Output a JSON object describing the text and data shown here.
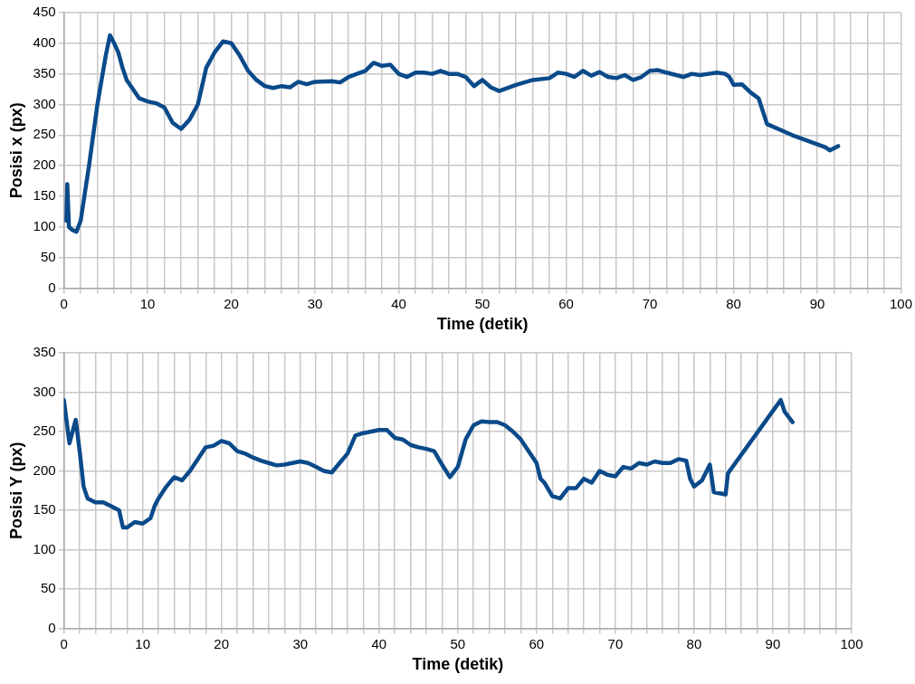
{
  "chart_data": [
    {
      "type": "line",
      "xlabel": "Time (detik)",
      "ylabel": "Posisi x (px)",
      "xlim": [
        0,
        100
      ],
      "ylim": [
        0,
        450
      ],
      "xticks": [
        0,
        {
          "value": 2,
          "label": null
        },
        {
          "value": 4,
          "label": null
        },
        {
          "value": 6,
          "label": null
        },
        {
          "value": 8,
          "label": null
        },
        10,
        {
          "value": 12,
          "label": null
        },
        {
          "value": 14,
          "label": null
        },
        {
          "value": 16,
          "label": null
        },
        {
          "value": 18,
          "label": null
        },
        20,
        {
          "value": 22,
          "label": null
        },
        {
          "value": 24,
          "label": null
        },
        {
          "value": 26,
          "label": null
        },
        {
          "value": 28,
          "label": null
        },
        30,
        {
          "value": 32,
          "label": null
        },
        {
          "value": 34,
          "label": null
        },
        {
          "value": 36,
          "label": null
        },
        {
          "value": 38,
          "label": null
        },
        40,
        {
          "value": 42,
          "label": null
        },
        {
          "value": 44,
          "label": null
        },
        {
          "value": 46,
          "label": null
        },
        {
          "value": 48,
          "label": null
        },
        50,
        {
          "value": 52,
          "label": null
        },
        {
          "value": 54,
          "label": null
        },
        {
          "value": 56,
          "label": null
        },
        {
          "value": 58,
          "label": null
        },
        60,
        {
          "value": 62,
          "label": null
        },
        {
          "value": 64,
          "label": null
        },
        {
          "value": 66,
          "label": null
        },
        {
          "value": 68,
          "label": null
        },
        70,
        {
          "value": 72,
          "label": null
        },
        {
          "value": 74,
          "label": null
        },
        {
          "value": 76,
          "label": null
        },
        {
          "value": 78,
          "label": null
        },
        80,
        {
          "value": 82,
          "label": null
        },
        {
          "value": 84,
          "label": null
        },
        {
          "value": 86,
          "label": null
        },
        {
          "value": 88,
          "label": null
        },
        90,
        {
          "value": 92,
          "label": null
        },
        {
          "value": 94,
          "label": null
        },
        {
          "value": 96,
          "label": null
        },
        {
          "value": 98,
          "label": null
        },
        100
      ],
      "yticks": [
        0,
        50,
        100,
        150,
        200,
        250,
        300,
        350,
        400,
        450
      ],
      "grid": true,
      "legend": false,
      "marker": "none",
      "line_style": "solid",
      "series": [
        {
          "color": "#0a4a8a",
          "x": [
            0.3,
            0.4,
            0.6,
            1,
            1.5,
            2,
            3,
            4,
            5,
            5.5,
            6,
            6.5,
            7,
            7.5,
            8.5,
            9,
            10,
            11,
            12,
            13,
            14,
            15,
            16,
            16.5,
            17,
            18,
            19,
            20,
            21,
            22,
            23,
            24,
            25,
            26,
            27,
            28,
            29,
            30,
            32,
            33,
            34,
            35,
            36,
            37,
            38,
            39,
            40,
            41,
            42,
            43,
            44,
            45,
            46,
            47,
            48,
            49,
            50,
            51,
            52,
            54,
            56,
            58,
            59,
            60,
            61,
            62,
            63,
            64,
            65,
            66,
            67,
            68,
            69,
            70,
            71,
            72,
            74,
            75,
            76,
            77,
            78,
            79,
            79.5,
            80,
            81,
            82,
            83,
            84,
            87,
            91,
            91.5,
            92.5
          ],
          "values": [
            110,
            170,
            100,
            95,
            92,
            110,
            200,
            300,
            380,
            413,
            400,
            385,
            360,
            340,
            320,
            310,
            305,
            302,
            295,
            270,
            260,
            275,
            300,
            330,
            360,
            385,
            403,
            400,
            380,
            355,
            340,
            330,
            327,
            330,
            328,
            337,
            333,
            337,
            338,
            336,
            345,
            350,
            355,
            368,
            363,
            365,
            350,
            345,
            352,
            352,
            350,
            355,
            350,
            350,
            345,
            330,
            340,
            328,
            322,
            332,
            340,
            343,
            352,
            350,
            345,
            355,
            347,
            353,
            345,
            343,
            348,
            340,
            345,
            355,
            356,
            352,
            345,
            350,
            348,
            350,
            352,
            350,
            345,
            332,
            333,
            320,
            310,
            268,
            250,
            230,
            225,
            232
          ]
        }
      ]
    },
    {
      "type": "line",
      "xlabel": "Time (detik)",
      "ylabel": "Posisi Y (px)",
      "xlim": [
        0,
        100
      ],
      "ylim": [
        0,
        350
      ],
      "xticks": [
        0,
        {
          "value": 2,
          "label": null
        },
        {
          "value": 4,
          "label": null
        },
        {
          "value": 6,
          "label": null
        },
        {
          "value": 8,
          "label": null
        },
        10,
        {
          "value": 12,
          "label": null
        },
        {
          "value": 14,
          "label": null
        },
        {
          "value": 16,
          "label": null
        },
        {
          "value": 18,
          "label": null
        },
        20,
        {
          "value": 22,
          "label": null
        },
        {
          "value": 24,
          "label": null
        },
        {
          "value": 26,
          "label": null
        },
        {
          "value": 28,
          "label": null
        },
        30,
        {
          "value": 32,
          "label": null
        },
        {
          "value": 34,
          "label": null
        },
        {
          "value": 36,
          "label": null
        },
        {
          "value": 38,
          "label": null
        },
        40,
        {
          "value": 42,
          "label": null
        },
        {
          "value": 44,
          "label": null
        },
        {
          "value": 46,
          "label": null
        },
        {
          "value": 48,
          "label": null
        },
        50,
        {
          "value": 52,
          "label": null
        },
        {
          "value": 54,
          "label": null
        },
        {
          "value": 56,
          "label": null
        },
        {
          "value": 58,
          "label": null
        },
        60,
        {
          "value": 62,
          "label": null
        },
        {
          "value": 64,
          "label": null
        },
        {
          "value": 66,
          "label": null
        },
        {
          "value": 68,
          "label": null
        },
        70,
        {
          "value": 72,
          "label": null
        },
        {
          "value": 74,
          "label": null
        },
        {
          "value": 76,
          "label": null
        },
        {
          "value": 78,
          "label": null
        },
        80,
        {
          "value": 82,
          "label": null
        },
        {
          "value": 84,
          "label": null
        },
        {
          "value": 86,
          "label": null
        },
        {
          "value": 88,
          "label": null
        },
        90,
        {
          "value": 92,
          "label": null
        },
        {
          "value": 94,
          "label": null
        },
        {
          "value": 96,
          "label": null
        },
        {
          "value": 98,
          "label": null
        },
        100
      ],
      "yticks": [
        0,
        50,
        100,
        150,
        200,
        250,
        300,
        350
      ],
      "grid": true,
      "legend": false,
      "marker": "none",
      "line_style": "solid",
      "series": [
        {
          "color": "#0a4a8a",
          "x": [
            0,
            0.7,
            1.5,
            2,
            2.5,
            3,
            4,
            5,
            6,
            7,
            7.5,
            8,
            9,
            10,
            11,
            11.5,
            12,
            13,
            14,
            15,
            16,
            17,
            18,
            19,
            20,
            21,
            22,
            23,
            24,
            25,
            26,
            27,
            28,
            29,
            30,
            31,
            32,
            33,
            34,
            35,
            36,
            37,
            38,
            40,
            41,
            42,
            43,
            44,
            45,
            46,
            47,
            48,
            49,
            50,
            51,
            52,
            53,
            54,
            55,
            56,
            57,
            58,
            59,
            60,
            60.5,
            61,
            62,
            63,
            64,
            65,
            66,
            67,
            68,
            69,
            70,
            71,
            72,
            73,
            74,
            75,
            76,
            77,
            78,
            79,
            79.5,
            80,
            81,
            82,
            82.5,
            84,
            84.3,
            91,
            91.5,
            92.5
          ],
          "values": [
            290,
            235,
            265,
            225,
            180,
            165,
            160,
            160,
            155,
            150,
            128,
            128,
            135,
            133,
            140,
            155,
            165,
            180,
            192,
            188,
            200,
            215,
            230,
            232,
            238,
            235,
            225,
            222,
            217,
            213,
            210,
            207,
            208,
            210,
            212,
            210,
            205,
            200,
            198,
            210,
            222,
            245,
            248,
            252,
            252,
            242,
            240,
            233,
            230,
            228,
            225,
            208,
            192,
            205,
            240,
            258,
            263,
            262,
            262,
            258,
            250,
            240,
            225,
            210,
            190,
            185,
            168,
            165,
            178,
            178,
            190,
            185,
            200,
            195,
            193,
            205,
            203,
            210,
            208,
            212,
            210,
            210,
            215,
            213,
            190,
            180,
            188,
            208,
            173,
            170,
            197,
            290,
            275,
            262
          ]
        }
      ]
    }
  ]
}
